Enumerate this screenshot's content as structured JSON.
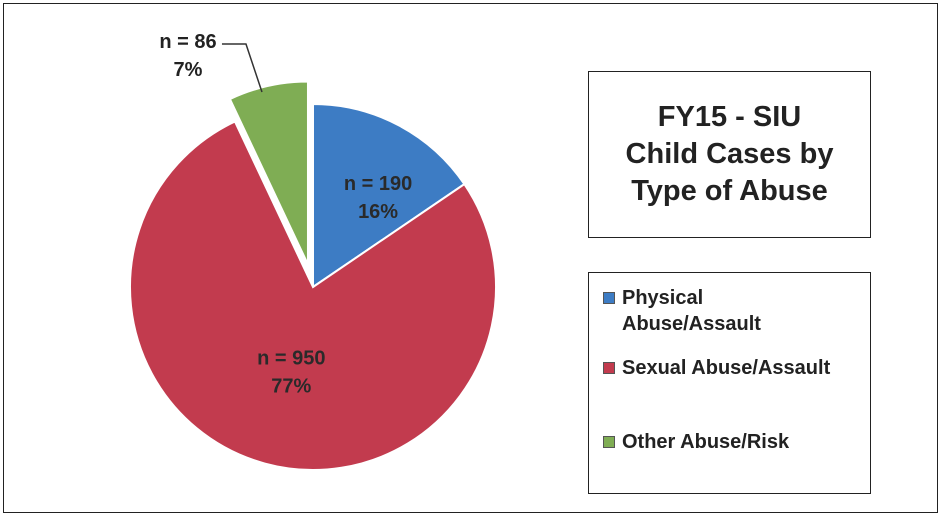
{
  "chart_data": {
    "type": "pie",
    "title": "FY15 - SIU\nChild Cases by\nType of Abuse",
    "legend_position": "right",
    "slices": [
      {
        "name": "Physical Abuse/Assault",
        "legend_label": "Physical\nAbuse/Assault",
        "value": 190,
        "count_label": "n = 190",
        "percent_label": "16%",
        "color": "#3d7cc4",
        "exploded": false
      },
      {
        "name": "Sexual Abuse/Assault",
        "legend_label": "Sexual Abuse/Assault",
        "value": 950,
        "count_label": "n = 950",
        "percent_label": "77%",
        "color": "#c23b4e",
        "exploded": false
      },
      {
        "name": "Other Abuse/Risk",
        "legend_label": "Other Abuse/Risk",
        "value": 86,
        "count_label": "n = 86",
        "percent_label": "7%",
        "color": "#7fad54",
        "exploded": true
      }
    ]
  }
}
